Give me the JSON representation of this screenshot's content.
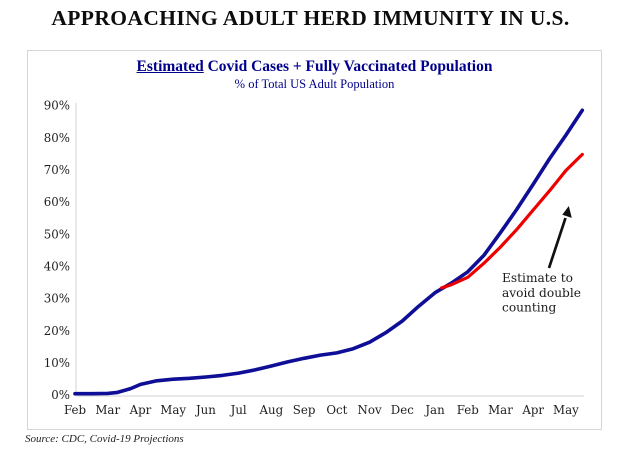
{
  "page": {
    "title": "APPROACHING ADULT HERD IMMUNITY IN U.S.",
    "source": "Source: CDC, Covid-19 Projections"
  },
  "chart": {
    "title_emph": "Estimated",
    "title_rest": " Covid Cases + Fully Vaccinated Population",
    "subtitle": "% of Total US Adult Population",
    "annotation_lines": [
      "Estimate to",
      "avoid double",
      "counting"
    ],
    "colors": {
      "combined_line": "#0E0E96",
      "adjusted_line": "#EC0000",
      "title_text": "#00008B",
      "axis_line": "#d9d9d9",
      "tick_text": "#1f1f1f",
      "annotation_text": "#1a1a1a",
      "arrow": "#111111"
    }
  },
  "chart_data": {
    "type": "line",
    "title": "Estimated Covid Cases + Fully Vaccinated Population",
    "subtitle": "% of Total US Adult Population",
    "categories": [
      "Feb",
      "Mar",
      "Apr",
      "May",
      "Jun",
      "Jul",
      "Aug",
      "Sep",
      "Oct",
      "Nov",
      "Dec",
      "Jan",
      "Feb",
      "Mar",
      "Apr",
      "May"
    ],
    "x_note": "x in month index units, 0 = Feb 2020, 15 = May 2021",
    "ylabel": "% of Total US Adult Population",
    "ylim": [
      0,
      90
    ],
    "yticks": [
      0,
      10,
      20,
      30,
      40,
      50,
      60,
      70,
      80,
      90
    ],
    "ytick_suffix": "%",
    "grid": false,
    "legend": false,
    "annotation": "Estimate to avoid double counting",
    "series": [
      {
        "name": "Estimated Covid cases + fully vaccinated population",
        "color": "#0E0E96",
        "points": [
          [
            0,
            0.4
          ],
          [
            0.5,
            0.4
          ],
          [
            1,
            0.5
          ],
          [
            1.3,
            0.8
          ],
          [
            1.7,
            2.0
          ],
          [
            2,
            3.3
          ],
          [
            2.5,
            4.4
          ],
          [
            3,
            4.9
          ],
          [
            3.5,
            5.2
          ],
          [
            4,
            5.6
          ],
          [
            4.5,
            6.1
          ],
          [
            5,
            6.8
          ],
          [
            5.5,
            7.8
          ],
          [
            6,
            9.0
          ],
          [
            6.5,
            10.3
          ],
          [
            7,
            11.4
          ],
          [
            7.5,
            12.4
          ],
          [
            8,
            13.1
          ],
          [
            8.5,
            14.4
          ],
          [
            9,
            16.4
          ],
          [
            9.5,
            19.4
          ],
          [
            10,
            23.0
          ],
          [
            10.5,
            27.6
          ],
          [
            11,
            31.8
          ],
          [
            11.5,
            34.8
          ],
          [
            12,
            38.3
          ],
          [
            12.5,
            43.5
          ],
          [
            13,
            50.5
          ],
          [
            13.5,
            57.8
          ],
          [
            14,
            65.5
          ],
          [
            14.5,
            73.5
          ],
          [
            15,
            80.8
          ],
          [
            15.5,
            88.5
          ]
        ]
      },
      {
        "name": "Estimate to avoid double counting",
        "color": "#EC0000",
        "points": [
          [
            11.2,
            33.3
          ],
          [
            11.5,
            34.3
          ],
          [
            12,
            36.6
          ],
          [
            12.5,
            41.0
          ],
          [
            13,
            46.0
          ],
          [
            13.5,
            51.5
          ],
          [
            14,
            57.5
          ],
          [
            14.5,
            63.5
          ],
          [
            15,
            69.8
          ],
          [
            15.5,
            74.8
          ]
        ]
      }
    ]
  }
}
